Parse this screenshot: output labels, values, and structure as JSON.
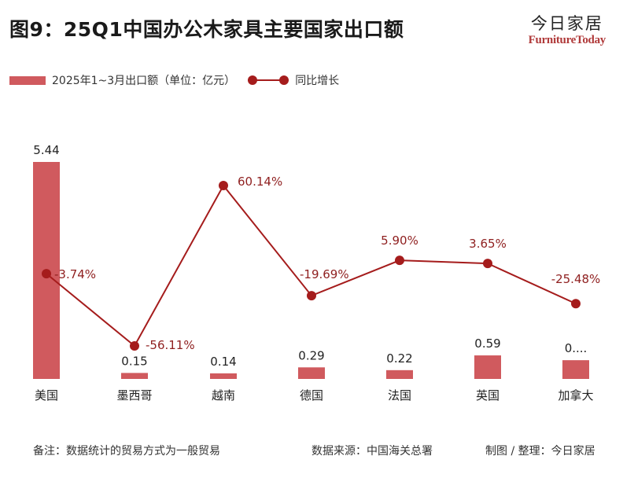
{
  "header": {
    "title": "图9：25Q1中国办公木家具主要国家出口额",
    "brand_cn": "今日家居",
    "brand_en": "FurnitureToday"
  },
  "legend": {
    "bar_label": "2025年1~3月出口额（单位：亿元）",
    "line_label": "同比增长"
  },
  "footer": {
    "note": "备注：数据统计的贸易方式为一般贸易",
    "source": "数据来源：中国海关总署",
    "credit": "制图 / 整理：今日家居"
  },
  "colors": {
    "bar": "#d05a5e",
    "line": "#a51c1c",
    "line_label": "#8f1f1f"
  },
  "chart_data": {
    "type": "bar",
    "categories": [
      "美国",
      "墨西哥",
      "越南",
      "德国",
      "法国",
      "英国",
      "加拿大"
    ],
    "series": [
      {
        "name": "2025年1~3月出口额（单位：亿元）",
        "type": "bar",
        "values": [
          5.44,
          0.15,
          0.14,
          0.29,
          0.22,
          0.59,
          0.47
        ]
      },
      {
        "name": "同比增长",
        "type": "line",
        "values": [
          -3.74,
          -56.11,
          60.14,
          -19.69,
          5.9,
          3.65,
          -25.48
        ]
      }
    ],
    "bar_labels": [
      "5.44",
      "0.15",
      "0.14",
      "0.29",
      "0.22",
      "0.59",
      "0...."
    ],
    "line_labels": [
      "-3.74%",
      "-56.11%",
      "60.14%",
      "-19.69%",
      "5.90%",
      "3.65%",
      "-25.48%"
    ],
    "ylim_bar": [
      0,
      5.44
    ],
    "ylim_line": [
      -56.11,
      60.14
    ],
    "grid": false,
    "legend_position": "top-left"
  }
}
